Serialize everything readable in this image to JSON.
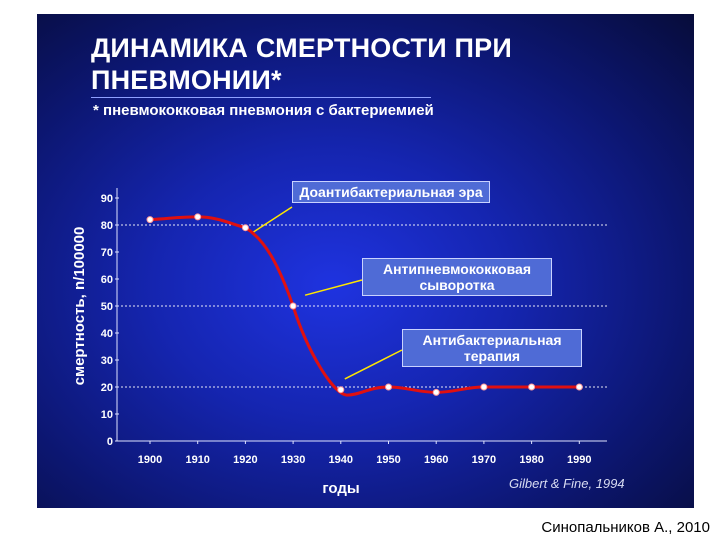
{
  "title": "ДИНАМИКА СМЕРТНОСТИ ПРИ ПНЕВМОНИИ*",
  "subtitle": "* пневмококковая пневмония с бактериемией",
  "annotations": [
    {
      "text": "Доантибактериальная эра"
    },
    {
      "text": "Антипневмококковая сыворотка"
    },
    {
      "text": "Антибактериальная терапия"
    }
  ],
  "source": "Gilbert & Fine, 1994",
  "author": "Синопальников А., 2010",
  "chart_data": {
    "type": "line",
    "title": "ДИНАМИКА СМЕРТНОСТИ ПРИ ПНЕВМОНИИ*",
    "xlabel": "годы",
    "ylabel": "смертность, n/100000",
    "x": [
      1900,
      1910,
      1920,
      1930,
      1940,
      1950,
      1960,
      1970,
      1980,
      1990
    ],
    "x_ticks": [
      "1900",
      "1910",
      "1920",
      "1930",
      "1940",
      "1950",
      "1960",
      "1970",
      "1980",
      "1990"
    ],
    "y_ticks": [
      "0",
      "10",
      "20",
      "30",
      "40",
      "50",
      "60",
      "70",
      "80",
      "90"
    ],
    "ylim": [
      0,
      90
    ],
    "reference_lines": [
      80,
      50,
      20
    ],
    "series": [
      {
        "values": [
          82,
          83,
          79,
          50,
          19,
          20,
          18,
          20,
          20,
          20
        ],
        "color": "#e01010"
      }
    ],
    "grid": false
  }
}
